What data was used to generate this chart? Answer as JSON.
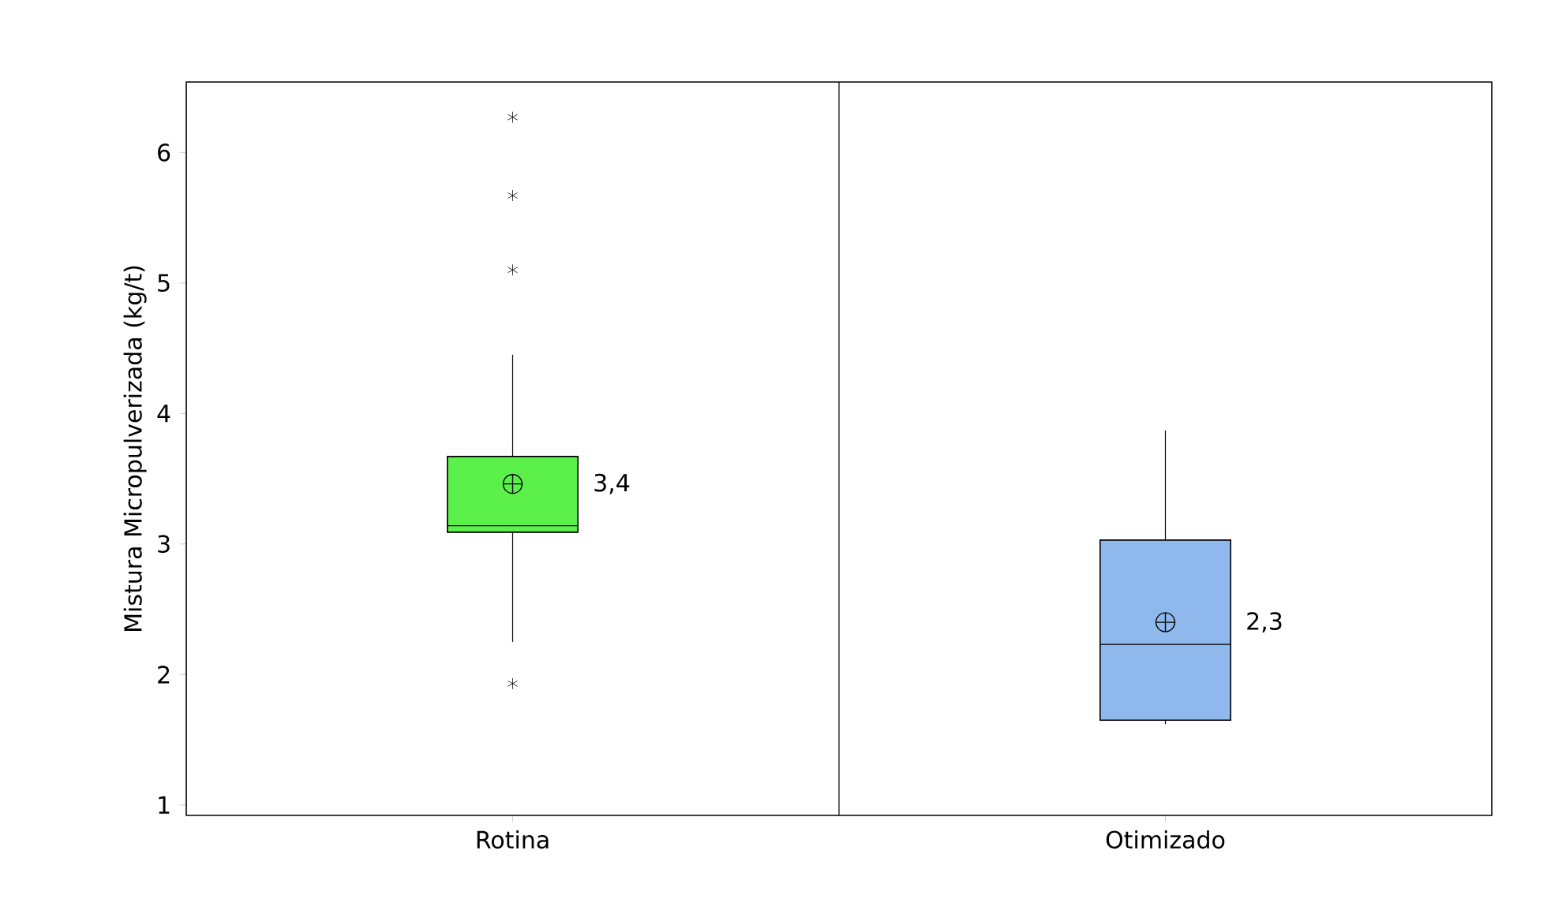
{
  "chart_data": {
    "type": "box",
    "ylabel": "Mistura Micropulverizada (kg/t)",
    "categories": [
      "Rotina",
      "Otimizado"
    ],
    "colors": [
      "#5cf04a",
      "#8fb8ec"
    ],
    "boxes": [
      {
        "low": 2.25,
        "q1": 3.09,
        "median": 3.14,
        "q3": 3.67,
        "high": 4.45,
        "mean": 3.46,
        "outliers": [
          1.93,
          5.1,
          5.67,
          6.27
        ]
      },
      {
        "low": 1.62,
        "q1": 1.65,
        "median": 2.23,
        "q3": 3.03,
        "high": 3.87,
        "mean": 2.4
      }
    ],
    "annotations": [
      "3,4",
      "2,3"
    ],
    "ylim": [
      0.92,
      6.54
    ],
    "yticks": [
      1,
      2,
      3,
      4,
      5,
      6
    ],
    "grid": false
  }
}
